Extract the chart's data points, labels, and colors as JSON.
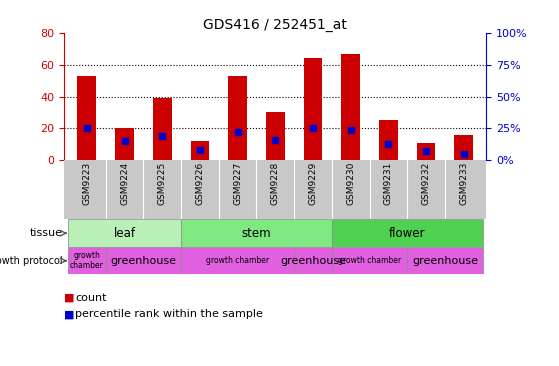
{
  "title": "GDS416 / 252451_at",
  "samples": [
    "GSM9223",
    "GSM9224",
    "GSM9225",
    "GSM9226",
    "GSM9227",
    "GSM9228",
    "GSM9229",
    "GSM9230",
    "GSM9231",
    "GSM9232",
    "GSM9233"
  ],
  "counts": [
    53,
    20,
    39,
    12,
    53,
    30,
    64,
    67,
    25,
    11,
    16
  ],
  "percentiles": [
    25,
    15,
    19,
    8,
    22,
    16,
    25,
    24,
    13,
    7,
    5
  ],
  "ylim_left": [
    0,
    80
  ],
  "ylim_right": [
    0,
    100
  ],
  "yticks_left": [
    0,
    20,
    40,
    60,
    80
  ],
  "yticks_right": [
    0,
    25,
    50,
    75,
    100
  ],
  "tissue_groups": [
    {
      "label": "leaf",
      "start": 0,
      "end": 2
    },
    {
      "label": "stem",
      "start": 3,
      "end": 6
    },
    {
      "label": "flower",
      "start": 7,
      "end": 10
    }
  ],
  "growth_groups": [
    {
      "label": "growth\nchamber",
      "start": 0,
      "end": 0
    },
    {
      "label": "greenhouse",
      "start": 1,
      "end": 2
    },
    {
      "label": "growth chamber",
      "start": 3,
      "end": 5
    },
    {
      "label": "greenhouse",
      "start": 6,
      "end": 6
    },
    {
      "label": "growth chamber",
      "start": 7,
      "end": 8
    },
    {
      "label": "greenhouse",
      "start": 9,
      "end": 10
    }
  ],
  "tissue_colors": {
    "leaf": "#b8f0b8",
    "stem": "#80e880",
    "flower": "#50d050"
  },
  "growth_color": "#e060e0",
  "bar_color": "#cc0000",
  "percentile_color": "#0000cc",
  "bar_width": 0.5,
  "bg_color": "#ffffff",
  "xticklabel_bg": "#c8c8c8",
  "left_tick_color": "#cc0000",
  "right_tick_color": "#0000cc",
  "grid_dotted_vals": [
    20,
    40,
    60
  ],
  "legend_items": [
    {
      "color": "#cc0000",
      "marker": "s",
      "label": "count"
    },
    {
      "color": "#0000cc",
      "marker": "s",
      "label": "percentile rank within the sample"
    }
  ]
}
